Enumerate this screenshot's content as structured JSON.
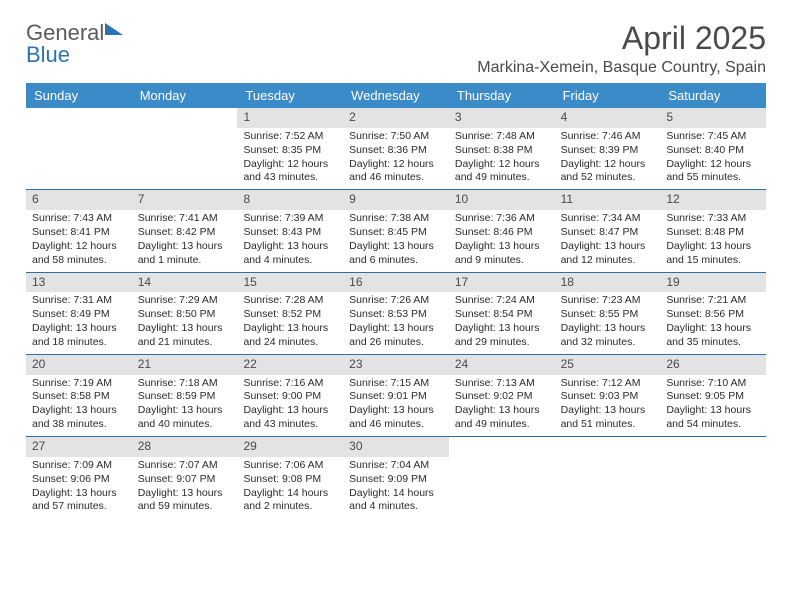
{
  "brand": {
    "word1": "General",
    "word2": "Blue"
  },
  "title": "April 2025",
  "location": "Markina-Xemein, Basque Country, Spain",
  "colors": {
    "header_bg": "#3b8bc8",
    "header_text": "#ffffff",
    "daynum_bg": "#e3e3e3",
    "week_divider": "#2f6fa3",
    "text": "#2b2b2b",
    "logo_gray": "#5b5b5b",
    "logo_blue": "#2d72b5"
  },
  "day_headers": [
    "Sunday",
    "Monday",
    "Tuesday",
    "Wednesday",
    "Thursday",
    "Friday",
    "Saturday"
  ],
  "weeks": [
    [
      {
        "n": "",
        "rise": "",
        "set": "",
        "dl1": "",
        "dl2": ""
      },
      {
        "n": "",
        "rise": "",
        "set": "",
        "dl1": "",
        "dl2": ""
      },
      {
        "n": "1",
        "rise": "Sunrise: 7:52 AM",
        "set": "Sunset: 8:35 PM",
        "dl1": "Daylight: 12 hours",
        "dl2": "and 43 minutes."
      },
      {
        "n": "2",
        "rise": "Sunrise: 7:50 AM",
        "set": "Sunset: 8:36 PM",
        "dl1": "Daylight: 12 hours",
        "dl2": "and 46 minutes."
      },
      {
        "n": "3",
        "rise": "Sunrise: 7:48 AM",
        "set": "Sunset: 8:38 PM",
        "dl1": "Daylight: 12 hours",
        "dl2": "and 49 minutes."
      },
      {
        "n": "4",
        "rise": "Sunrise: 7:46 AM",
        "set": "Sunset: 8:39 PM",
        "dl1": "Daylight: 12 hours",
        "dl2": "and 52 minutes."
      },
      {
        "n": "5",
        "rise": "Sunrise: 7:45 AM",
        "set": "Sunset: 8:40 PM",
        "dl1": "Daylight: 12 hours",
        "dl2": "and 55 minutes."
      }
    ],
    [
      {
        "n": "6",
        "rise": "Sunrise: 7:43 AM",
        "set": "Sunset: 8:41 PM",
        "dl1": "Daylight: 12 hours",
        "dl2": "and 58 minutes."
      },
      {
        "n": "7",
        "rise": "Sunrise: 7:41 AM",
        "set": "Sunset: 8:42 PM",
        "dl1": "Daylight: 13 hours",
        "dl2": "and 1 minute."
      },
      {
        "n": "8",
        "rise": "Sunrise: 7:39 AM",
        "set": "Sunset: 8:43 PM",
        "dl1": "Daylight: 13 hours",
        "dl2": "and 4 minutes."
      },
      {
        "n": "9",
        "rise": "Sunrise: 7:38 AM",
        "set": "Sunset: 8:45 PM",
        "dl1": "Daylight: 13 hours",
        "dl2": "and 6 minutes."
      },
      {
        "n": "10",
        "rise": "Sunrise: 7:36 AM",
        "set": "Sunset: 8:46 PM",
        "dl1": "Daylight: 13 hours",
        "dl2": "and 9 minutes."
      },
      {
        "n": "11",
        "rise": "Sunrise: 7:34 AM",
        "set": "Sunset: 8:47 PM",
        "dl1": "Daylight: 13 hours",
        "dl2": "and 12 minutes."
      },
      {
        "n": "12",
        "rise": "Sunrise: 7:33 AM",
        "set": "Sunset: 8:48 PM",
        "dl1": "Daylight: 13 hours",
        "dl2": "and 15 minutes."
      }
    ],
    [
      {
        "n": "13",
        "rise": "Sunrise: 7:31 AM",
        "set": "Sunset: 8:49 PM",
        "dl1": "Daylight: 13 hours",
        "dl2": "and 18 minutes."
      },
      {
        "n": "14",
        "rise": "Sunrise: 7:29 AM",
        "set": "Sunset: 8:50 PM",
        "dl1": "Daylight: 13 hours",
        "dl2": "and 21 minutes."
      },
      {
        "n": "15",
        "rise": "Sunrise: 7:28 AM",
        "set": "Sunset: 8:52 PM",
        "dl1": "Daylight: 13 hours",
        "dl2": "and 24 minutes."
      },
      {
        "n": "16",
        "rise": "Sunrise: 7:26 AM",
        "set": "Sunset: 8:53 PM",
        "dl1": "Daylight: 13 hours",
        "dl2": "and 26 minutes."
      },
      {
        "n": "17",
        "rise": "Sunrise: 7:24 AM",
        "set": "Sunset: 8:54 PM",
        "dl1": "Daylight: 13 hours",
        "dl2": "and 29 minutes."
      },
      {
        "n": "18",
        "rise": "Sunrise: 7:23 AM",
        "set": "Sunset: 8:55 PM",
        "dl1": "Daylight: 13 hours",
        "dl2": "and 32 minutes."
      },
      {
        "n": "19",
        "rise": "Sunrise: 7:21 AM",
        "set": "Sunset: 8:56 PM",
        "dl1": "Daylight: 13 hours",
        "dl2": "and 35 minutes."
      }
    ],
    [
      {
        "n": "20",
        "rise": "Sunrise: 7:19 AM",
        "set": "Sunset: 8:58 PM",
        "dl1": "Daylight: 13 hours",
        "dl2": "and 38 minutes."
      },
      {
        "n": "21",
        "rise": "Sunrise: 7:18 AM",
        "set": "Sunset: 8:59 PM",
        "dl1": "Daylight: 13 hours",
        "dl2": "and 40 minutes."
      },
      {
        "n": "22",
        "rise": "Sunrise: 7:16 AM",
        "set": "Sunset: 9:00 PM",
        "dl1": "Daylight: 13 hours",
        "dl2": "and 43 minutes."
      },
      {
        "n": "23",
        "rise": "Sunrise: 7:15 AM",
        "set": "Sunset: 9:01 PM",
        "dl1": "Daylight: 13 hours",
        "dl2": "and 46 minutes."
      },
      {
        "n": "24",
        "rise": "Sunrise: 7:13 AM",
        "set": "Sunset: 9:02 PM",
        "dl1": "Daylight: 13 hours",
        "dl2": "and 49 minutes."
      },
      {
        "n": "25",
        "rise": "Sunrise: 7:12 AM",
        "set": "Sunset: 9:03 PM",
        "dl1": "Daylight: 13 hours",
        "dl2": "and 51 minutes."
      },
      {
        "n": "26",
        "rise": "Sunrise: 7:10 AM",
        "set": "Sunset: 9:05 PM",
        "dl1": "Daylight: 13 hours",
        "dl2": "and 54 minutes."
      }
    ],
    [
      {
        "n": "27",
        "rise": "Sunrise: 7:09 AM",
        "set": "Sunset: 9:06 PM",
        "dl1": "Daylight: 13 hours",
        "dl2": "and 57 minutes."
      },
      {
        "n": "28",
        "rise": "Sunrise: 7:07 AM",
        "set": "Sunset: 9:07 PM",
        "dl1": "Daylight: 13 hours",
        "dl2": "and 59 minutes."
      },
      {
        "n": "29",
        "rise": "Sunrise: 7:06 AM",
        "set": "Sunset: 9:08 PM",
        "dl1": "Daylight: 14 hours",
        "dl2": "and 2 minutes."
      },
      {
        "n": "30",
        "rise": "Sunrise: 7:04 AM",
        "set": "Sunset: 9:09 PM",
        "dl1": "Daylight: 14 hours",
        "dl2": "and 4 minutes."
      },
      {
        "n": "",
        "rise": "",
        "set": "",
        "dl1": "",
        "dl2": ""
      },
      {
        "n": "",
        "rise": "",
        "set": "",
        "dl1": "",
        "dl2": ""
      },
      {
        "n": "",
        "rise": "",
        "set": "",
        "dl1": "",
        "dl2": ""
      }
    ]
  ]
}
